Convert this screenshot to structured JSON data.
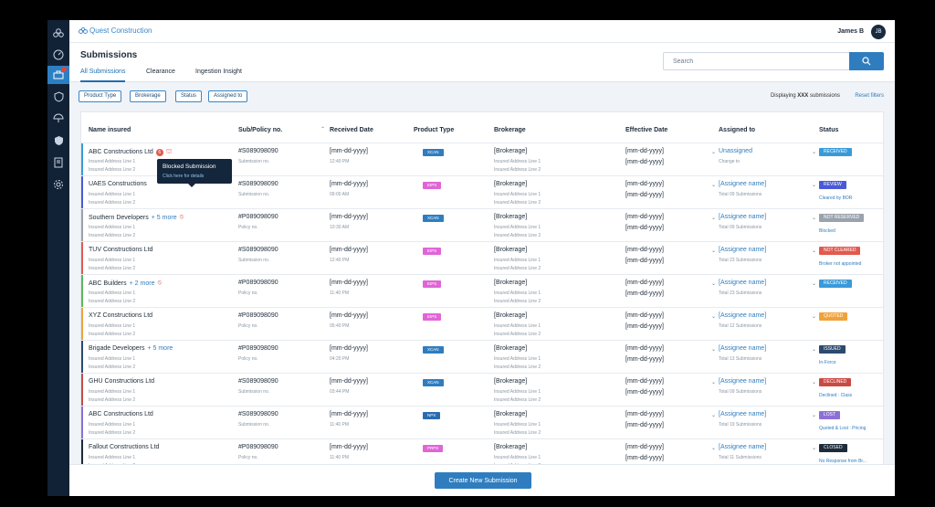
{
  "app": {
    "logo_text": "Quest Construction",
    "user_name": "James B",
    "user_initials": "JB"
  },
  "sidebar": {
    "icons": [
      "logo-icon",
      "speedometer-icon",
      "briefcase-icon",
      "shield-icon",
      "umbrella-icon",
      "shield-check-icon",
      "building-icon",
      "document-icon",
      "settings-icon"
    ],
    "active_index": 2
  },
  "header": {
    "title": "Submissions",
    "tabs": [
      "All Submissions",
      "Clearance",
      "Ingestion Insight"
    ],
    "active_tab": 0,
    "search_placeholder": "Search"
  },
  "filters": {
    "chips": [
      "Product Type",
      "Brokerage",
      "Status",
      "Assigned to"
    ],
    "displaying_prefix": "Displaying ",
    "displaying_count": "XXX",
    "displaying_suffix": " submissions",
    "reset": "Reset filters"
  },
  "table": {
    "columns": [
      "Name insured",
      "Sub/Policy no.",
      "Received Date",
      "Product Type",
      "Brokerage",
      "Effective Date",
      "Assigned to",
      "Status"
    ],
    "rows": [
      {
        "name": "ABC Constructions Ltd",
        "more": "",
        "addr1": "Insured Address Line 1",
        "addr2": "Insured Address Line 2",
        "policy": "#S089098090",
        "policy_label": "Submission no.",
        "received": "[mm-dd-yyyy]",
        "time": "12:40 PM",
        "ptype": "XCAN",
        "ptype_color": "#2f7dbf",
        "broker": "[Brokerage]",
        "baddr1": "Insured Address Line 1",
        "baddr2": "Insured Address Line 2",
        "eff1": "[mm-dd-yyyy]",
        "eff2": "[mm-dd-yyyy]",
        "assignee": "Unassigned",
        "assignee_sub": "Change to",
        "status": "RECEIVED",
        "status_color": "#3a9ad9",
        "status_sub": "",
        "stripe": "#3a9ad9"
      },
      {
        "name": "UAES Constructions",
        "more": "",
        "addr1": "Insured Address Line 1",
        "addr2": "Insured Address Line 2",
        "policy": "#S089098090",
        "policy_label": "Submission no.",
        "received": "[mm-dd-yyyy]",
        "time": "09:00 AM",
        "ptype": "EIPS",
        "ptype_color": "#e066d6",
        "broker": "[Brokerage]",
        "baddr1": "Insured Address Line 1",
        "baddr2": "Insured Address Line 2",
        "eff1": "[mm-dd-yyyy]",
        "eff2": "[mm-dd-yyyy]",
        "assignee": "[Assignee name]",
        "assignee_sub": "Total 09 Submissions",
        "status": "REVIEW",
        "status_color": "#4a5ad6",
        "status_sub": "Cleared by BOR",
        "stripe": "#4a5ad6"
      },
      {
        "name": "Southern Developers",
        "more": "+ 5 more",
        "addr1": "Insured Address Line 1",
        "addr2": "Insured Address Line 2",
        "policy": "#P089098090",
        "policy_label": "Policy no.",
        "received": "[mm-dd-yyyy]",
        "time": "10:30 AM",
        "ptype": "XCAN",
        "ptype_color": "#2f7dbf",
        "broker": "[Brokerage]",
        "baddr1": "Insured Address Line 1",
        "baddr2": "Insured Address Line 2",
        "eff1": "[mm-dd-yyyy]",
        "eff2": "[mm-dd-yyyy]",
        "assignee": "[Assignee name]",
        "assignee_sub": "Total 09 Submissions",
        "status": "NOT RESERVED",
        "status_color": "#9aa3ad",
        "status_sub": "Blocked",
        "stripe": "#9aa3ad"
      },
      {
        "name": "TUV Constructions Ltd",
        "more": "",
        "addr1": "Insured Address Line 1",
        "addr2": "Insured Address Line 2",
        "policy": "#S089098090",
        "policy_label": "Submission no.",
        "received": "[mm-dd-yyyy]",
        "time": "12:40 PM",
        "ptype": "EIPS",
        "ptype_color": "#e066d6",
        "broker": "[Brokerage]",
        "baddr1": "Insured Address Line 1",
        "baddr2": "Insured Address Line 2",
        "eff1": "[mm-dd-yyyy]",
        "eff2": "[mm-dd-yyyy]",
        "assignee": "[Assignee name]",
        "assignee_sub": "Total 23 Submissions",
        "status": "NOT CLEARED",
        "status_color": "#e25a4f",
        "status_sub": "Broker not appointed",
        "stripe": "#e25a4f"
      },
      {
        "name": "ABC Builders",
        "more": "+ 2 more",
        "addr1": "Insured Address Line 1",
        "addr2": "Insured Address Line 2",
        "policy": "#P089098090",
        "policy_label": "Policy no.",
        "received": "[mm-dd-yyyy]",
        "time": "11:40 PM",
        "ptype": "EIPS",
        "ptype_color": "#e066d6",
        "broker": "[Brokerage]",
        "baddr1": "Insured Address Line 1",
        "baddr2": "Insured Address Line 2",
        "eff1": "[mm-dd-yyyy]",
        "eff2": "[mm-dd-yyyy]",
        "assignee": "[Assignee name]",
        "assignee_sub": "Total 23 Submissions",
        "status": "RECEIVED",
        "status_color": "#3a9ad9",
        "status_sub": "",
        "stripe": "#5cb85c"
      },
      {
        "name": "XYZ Constructions Ltd",
        "more": "",
        "addr1": "Insured Address Line 1",
        "addr2": "Insured Address Line 2",
        "policy": "#P089098090",
        "policy_label": "Policy no.",
        "received": "[mm-dd-yyyy]",
        "time": "05:40 PM",
        "ptype": "EIPS",
        "ptype_color": "#e066d6",
        "broker": "[Brokerage]",
        "baddr1": "Insured Address Line 1",
        "baddr2": "Insured Address Line 2",
        "eff1": "[mm-dd-yyyy]",
        "eff2": "[mm-dd-yyyy]",
        "assignee": "[Assignee name]",
        "assignee_sub": "Total 12 Submissions",
        "status": "QUOTED",
        "status_color": "#f0a23a",
        "status_sub": "",
        "stripe": "#f0a23a"
      },
      {
        "name": "Brigade Developers",
        "more": "+ 5 more",
        "addr1": "Insured Address Line 1",
        "addr2": "Insured Address Line 2",
        "policy": "#P089098090",
        "policy_label": "Policy no.",
        "received": "[mm-dd-yyyy]",
        "time": "04:20 PM",
        "ptype": "XCAN",
        "ptype_color": "#2f7dbf",
        "broker": "[Brokerage]",
        "baddr1": "Insured Address Line 1",
        "baddr2": "Insured Address Line 2",
        "eff1": "[mm-dd-yyyy]",
        "eff2": "[mm-dd-yyyy]",
        "assignee": "[Assignee name]",
        "assignee_sub": "Total 13 Submissions",
        "status": "ISSUED",
        "status_color": "#2d4a6e",
        "status_sub": "In-Force",
        "stripe": "#2d4a6e"
      },
      {
        "name": "GHU Constructions Ltd",
        "more": "",
        "addr1": "Insured Address Line 1",
        "addr2": "Insured Address Line 2",
        "policy": "#S089098090",
        "policy_label": "Submission no.",
        "received": "[mm-dd-yyyy]",
        "time": "03:44 PM",
        "ptype": "XCAN",
        "ptype_color": "#2f7dbf",
        "broker": "[Brokerage]",
        "baddr1": "Insured Address Line 1",
        "baddr2": "Insured Address Line 2",
        "eff1": "[mm-dd-yyyy]",
        "eff2": "[mm-dd-yyyy]",
        "assignee": "[Assignee name]",
        "assignee_sub": "Total 09 Submissions",
        "status": "DECLINED",
        "status_color": "#c94a44",
        "status_sub": "Declined : Class",
        "stripe": "#c94a44"
      },
      {
        "name": "ABC Constructions Ltd",
        "more": "",
        "addr1": "Insured Address Line 1",
        "addr2": "Insured Address Line 2",
        "policy": "#S089098090",
        "policy_label": "Submission no.",
        "received": "[mm-dd-yyyy]",
        "time": "11:40 PM",
        "ptype": "NPX",
        "ptype_color": "#2d6bb0",
        "broker": "[Brokerage]",
        "baddr1": "Insured Address Line 1",
        "baddr2": "Insured Address Line 2",
        "eff1": "[mm-dd-yyyy]",
        "eff2": "[mm-dd-yyyy]",
        "assignee": "[Assignee name]",
        "assignee_sub": "Total 19 Submissions",
        "status": "LOST",
        "status_color": "#8d6fd8",
        "status_sub": "Quoted & Lost : Pricing",
        "stripe": "#8d6fd8"
      },
      {
        "name": "Fallout Constructions Ltd",
        "more": "",
        "addr1": "Insured Address Line 1",
        "addr2": "Insured Address Line 2",
        "policy": "#P089098090",
        "policy_label": "Policy no.",
        "received": "[mm-dd-yyyy]",
        "time": "11:40 PM",
        "ptype": "PRPS",
        "ptype_color": "#e066d6",
        "broker": "[Brokerage]",
        "baddr1": "Insured Address Line 1",
        "baddr2": "Insured Address Line 2",
        "eff1": "[mm-dd-yyyy]",
        "eff2": "[mm-dd-yyyy]",
        "assignee": "[Assignee name]",
        "assignee_sub": "Total 11 Submissions",
        "status": "CLOSED",
        "status_color": "#1d2b3a",
        "status_sub": "No Response from Br...",
        "stripe": "#1d2b3a"
      }
    ]
  },
  "row0_icons": [
    "alert-count-icon",
    "locked-building-icon"
  ],
  "row0_alert": "6",
  "tooltip": {
    "title": "Blocked Submission",
    "subtitle": "Click here for details"
  },
  "footer": {
    "create_label": "Create New Submission"
  }
}
